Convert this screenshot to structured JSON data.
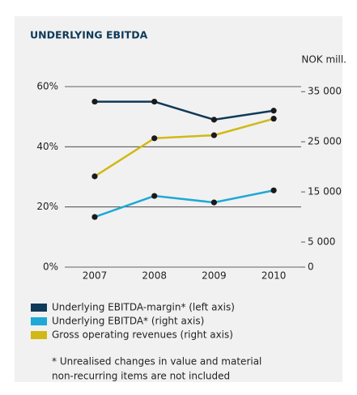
{
  "chart_data": {
    "type": "line",
    "title": "UNDERLYING EBITDA",
    "y2_label": "NOK mill.",
    "categories": [
      "2007",
      "2008",
      "2009",
      "2010"
    ],
    "series": [
      {
        "name": "Underlying EBITDA-margin* (left axis)",
        "color": "#0f3a5a",
        "values": [
          55,
          55,
          49,
          52
        ]
      },
      {
        "name": "Underlying EBITDA* (right axis)",
        "color": "#1ea9d6",
        "values": [
          10000,
          14200,
          12900,
          15300
        ],
        "axis": "y2"
      },
      {
        "name": "Gross operating revenues (right axis)",
        "color": "#d2b814",
        "values": [
          18100,
          25700,
          26300,
          29600
        ],
        "axis": "y2"
      }
    ],
    "ylim": [
      0,
      60
    ],
    "yticks": [
      {
        "value": 0,
        "label": "0%"
      },
      {
        "value": 20,
        "label": "20%"
      },
      {
        "value": 40,
        "label": "40%"
      },
      {
        "value": 60,
        "label": "60%"
      }
    ],
    "y2lim": [
      0,
      36000
    ],
    "y2ticks": [
      0,
      {
        "value": 5000,
        "label": "5 000"
      },
      {
        "value": 15000,
        "label": "15 000"
      },
      {
        "value": 25000,
        "label": "25 000"
      },
      {
        "value": 35000,
        "label": "35 000"
      }
    ],
    "grid": true,
    "footnote": [
      "* Unrealised changes in value and material",
      "non-recurring items are not included"
    ]
  }
}
